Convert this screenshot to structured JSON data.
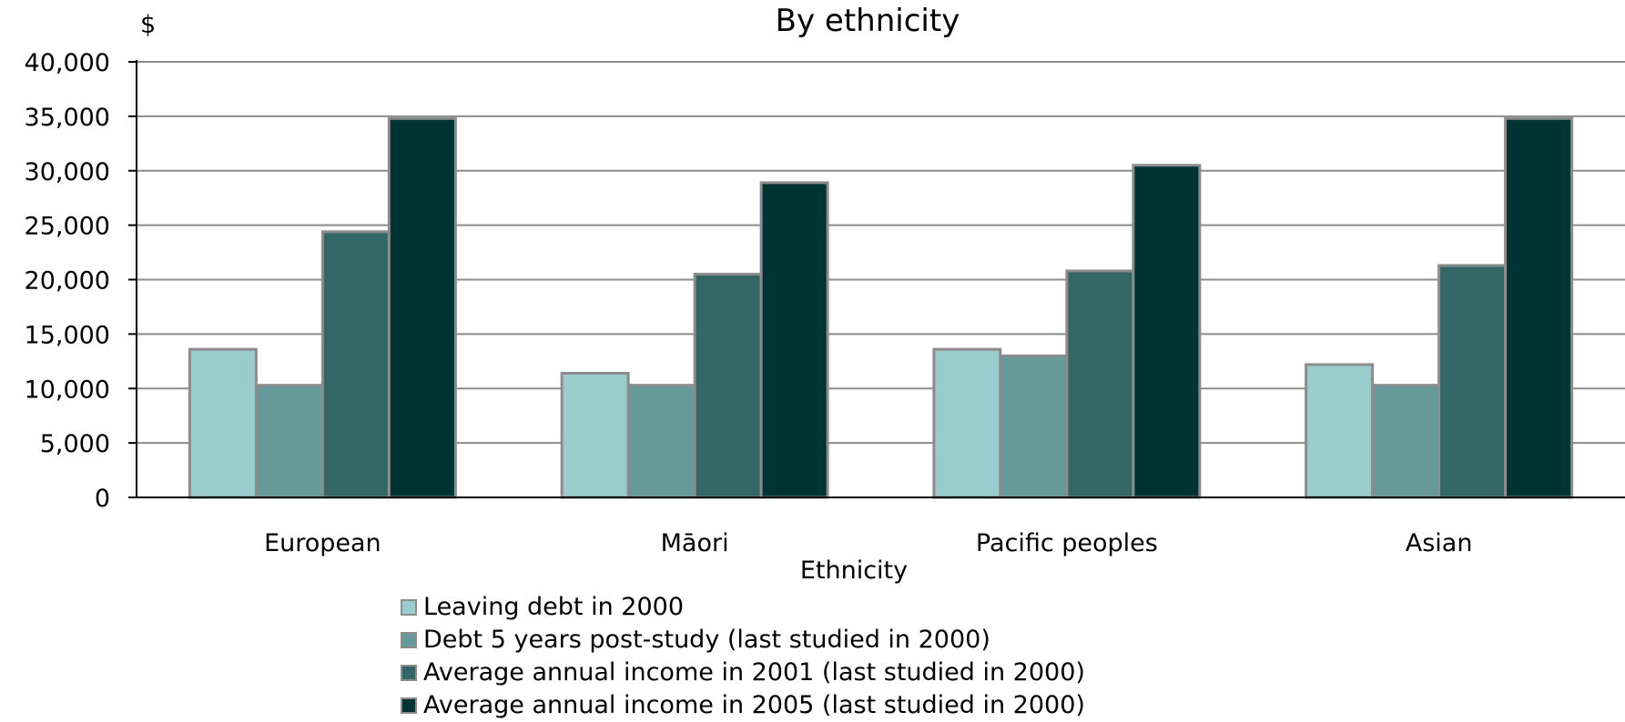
{
  "chart_data": {
    "type": "bar",
    "title": "By ethnicity",
    "unit_label": "$",
    "xlabel": "Ethnicity",
    "ylabel": "",
    "ylim": [
      0,
      40000
    ],
    "yticks": [
      "0",
      "5,000",
      "10,000",
      "15,000",
      "20,000",
      "25,000",
      "30,000",
      "35,000",
      "40,000"
    ],
    "grid": true,
    "legend_position": "bottom",
    "categories": [
      "European",
      "Māori",
      "Pacific peoples",
      "Asian"
    ],
    "series": [
      {
        "name": "Leaving debt in 2000",
        "color": "#99cccc",
        "values": [
          13600,
          11400,
          13600,
          12200
        ]
      },
      {
        "name": "Debt 5 years post-study (last studied in 2000)",
        "color": "#669999",
        "values": [
          10300,
          10300,
          13000,
          10300
        ]
      },
      {
        "name": "Average annual income in 2001 (last studied in 2000)",
        "color": "#336666",
        "values": [
          24400,
          20500,
          20800,
          21300
        ]
      },
      {
        "name": "Average annual income in 2005 (last studied in 2000)",
        "color": "#003333",
        "values": [
          34800,
          28900,
          30500,
          34800
        ]
      }
    ]
  }
}
